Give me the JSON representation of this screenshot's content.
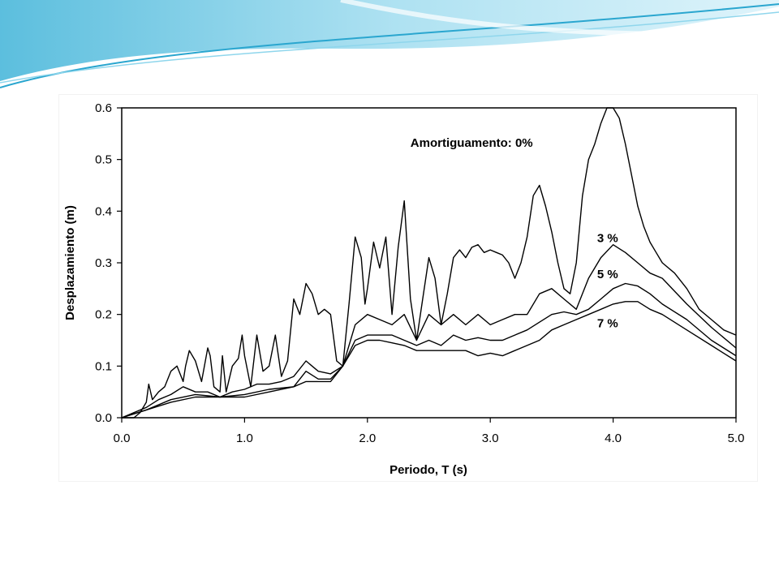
{
  "theme": {
    "swoosh_light": "#cfeef8",
    "swoosh_mid": "#8fd6ec",
    "swoosh_dark": "#2aa6cf",
    "line_color": "#000000"
  },
  "chart_data": {
    "type": "line",
    "xlabel": "Periodo, T (s)",
    "ylabel": "Desplazamiento (m)",
    "xlim": [
      0,
      5
    ],
    "ylim": [
      0,
      0.6
    ],
    "xticks": [
      "0.0",
      "1.0",
      "2.0",
      "3.0",
      "4.0",
      "5.0"
    ],
    "yticks": [
      "0.0",
      "0.1",
      "0.2",
      "0.3",
      "0.4",
      "0.5",
      "0.6"
    ],
    "grid": false,
    "legend": "none",
    "annotations": [
      {
        "text": "Amortiguamento: 0%",
        "x": 2.35,
        "y": 0.525
      },
      {
        "text": "3 %",
        "x": 3.87,
        "y": 0.34
      },
      {
        "text": "5 %",
        "x": 3.87,
        "y": 0.27
      },
      {
        "text": "7 %",
        "x": 3.87,
        "y": 0.175
      }
    ],
    "series": [
      {
        "x": [
          0,
          0.1,
          0.15,
          0.2,
          0.22,
          0.25,
          0.3,
          0.35,
          0.4,
          0.45,
          0.5,
          0.52,
          0.55,
          0.6,
          0.65,
          0.7,
          0.72,
          0.75,
          0.8,
          0.82,
          0.85,
          0.9,
          0.95,
          0.98,
          1.0,
          1.05,
          1.1,
          1.15,
          1.2,
          1.25,
          1.3,
          1.35,
          1.4,
          1.45,
          1.5,
          1.55,
          1.6,
          1.65,
          1.7,
          1.75,
          1.8,
          1.85,
          1.9,
          1.95,
          1.98,
          2.0,
          2.05,
          2.1,
          2.15,
          2.2,
          2.25,
          2.3,
          2.35,
          2.4,
          2.45,
          2.5,
          2.55,
          2.6,
          2.65,
          2.7,
          2.75,
          2.8,
          2.85,
          2.9,
          2.95,
          3.0,
          3.05,
          3.1,
          3.15,
          3.2,
          3.25,
          3.3,
          3.35,
          3.4,
          3.45,
          3.5,
          3.55,
          3.6,
          3.65,
          3.7,
          3.75,
          3.8,
          3.85,
          3.9,
          3.95,
          4.0,
          4.05,
          4.1,
          4.15,
          4.2,
          4.25,
          4.3,
          4.35,
          4.4,
          4.5,
          4.6,
          4.7,
          4.8,
          4.9,
          5.0
        ],
        "values": [
          0,
          0,
          0.01,
          0.03,
          0.065,
          0.035,
          0.05,
          0.06,
          0.09,
          0.1,
          0.07,
          0.1,
          0.13,
          0.11,
          0.07,
          0.135,
          0.12,
          0.06,
          0.05,
          0.12,
          0.05,
          0.1,
          0.115,
          0.16,
          0.12,
          0.06,
          0.16,
          0.09,
          0.1,
          0.16,
          0.08,
          0.11,
          0.23,
          0.2,
          0.26,
          0.24,
          0.2,
          0.21,
          0.2,
          0.11,
          0.1,
          0.22,
          0.35,
          0.31,
          0.22,
          0.25,
          0.34,
          0.29,
          0.35,
          0.2,
          0.33,
          0.42,
          0.23,
          0.15,
          0.23,
          0.31,
          0.27,
          0.18,
          0.24,
          0.31,
          0.325,
          0.31,
          0.33,
          0.335,
          0.32,
          0.325,
          0.32,
          0.315,
          0.3,
          0.27,
          0.3,
          0.35,
          0.43,
          0.45,
          0.41,
          0.36,
          0.3,
          0.25,
          0.24,
          0.3,
          0.43,
          0.5,
          0.53,
          0.57,
          0.6,
          0.6,
          0.58,
          0.53,
          0.47,
          0.41,
          0.37,
          0.34,
          0.32,
          0.3,
          0.28,
          0.25,
          0.21,
          0.19,
          0.17,
          0.16
        ]
      },
      {
        "x": [
          0,
          0.2,
          0.3,
          0.4,
          0.5,
          0.6,
          0.7,
          0.8,
          0.9,
          1.0,
          1.1,
          1.2,
          1.3,
          1.4,
          1.5,
          1.6,
          1.7,
          1.8,
          1.9,
          2.0,
          2.1,
          2.2,
          2.3,
          2.4,
          2.5,
          2.6,
          2.7,
          2.8,
          2.9,
          3.0,
          3.1,
          3.2,
          3.3,
          3.4,
          3.5,
          3.6,
          3.7,
          3.8,
          3.9,
          4.0,
          4.1,
          4.2,
          4.3,
          4.4,
          4.6,
          4.8,
          5.0
        ],
        "values": [
          0,
          0.02,
          0.035,
          0.045,
          0.06,
          0.05,
          0.05,
          0.04,
          0.05,
          0.055,
          0.065,
          0.065,
          0.07,
          0.08,
          0.11,
          0.09,
          0.085,
          0.1,
          0.18,
          0.2,
          0.19,
          0.18,
          0.2,
          0.15,
          0.2,
          0.18,
          0.2,
          0.18,
          0.2,
          0.18,
          0.19,
          0.2,
          0.2,
          0.24,
          0.25,
          0.23,
          0.21,
          0.27,
          0.31,
          0.335,
          0.32,
          0.3,
          0.28,
          0.27,
          0.22,
          0.175,
          0.135
        ]
      },
      {
        "x": [
          0,
          0.2,
          0.4,
          0.6,
          0.8,
          1.0,
          1.2,
          1.4,
          1.5,
          1.6,
          1.7,
          1.8,
          1.9,
          2.0,
          2.1,
          2.2,
          2.3,
          2.4,
          2.5,
          2.6,
          2.7,
          2.8,
          2.9,
          3.0,
          3.1,
          3.2,
          3.3,
          3.4,
          3.5,
          3.6,
          3.7,
          3.8,
          3.9,
          4.0,
          4.1,
          4.2,
          4.3,
          4.4,
          4.6,
          4.8,
          5.0
        ],
        "values": [
          0,
          0.015,
          0.035,
          0.045,
          0.04,
          0.045,
          0.055,
          0.06,
          0.09,
          0.075,
          0.075,
          0.1,
          0.15,
          0.16,
          0.16,
          0.16,
          0.15,
          0.14,
          0.15,
          0.14,
          0.16,
          0.15,
          0.155,
          0.15,
          0.15,
          0.16,
          0.17,
          0.185,
          0.2,
          0.205,
          0.2,
          0.21,
          0.23,
          0.25,
          0.26,
          0.255,
          0.24,
          0.22,
          0.19,
          0.15,
          0.12
        ]
      },
      {
        "x": [
          0,
          0.2,
          0.4,
          0.6,
          0.8,
          1.0,
          1.2,
          1.4,
          1.5,
          1.6,
          1.7,
          1.8,
          1.9,
          2.0,
          2.1,
          2.2,
          2.3,
          2.4,
          2.5,
          2.6,
          2.7,
          2.8,
          2.9,
          3.0,
          3.1,
          3.2,
          3.3,
          3.4,
          3.5,
          3.6,
          3.7,
          3.8,
          3.9,
          4.0,
          4.1,
          4.2,
          4.3,
          4.4,
          4.6,
          4.8,
          5.0
        ],
        "values": [
          0,
          0.015,
          0.03,
          0.04,
          0.04,
          0.04,
          0.05,
          0.06,
          0.07,
          0.07,
          0.07,
          0.1,
          0.14,
          0.15,
          0.15,
          0.145,
          0.14,
          0.13,
          0.13,
          0.13,
          0.13,
          0.13,
          0.12,
          0.125,
          0.12,
          0.13,
          0.14,
          0.15,
          0.17,
          0.18,
          0.19,
          0.2,
          0.21,
          0.22,
          0.225,
          0.225,
          0.21,
          0.2,
          0.17,
          0.14,
          0.11
        ]
      }
    ]
  }
}
